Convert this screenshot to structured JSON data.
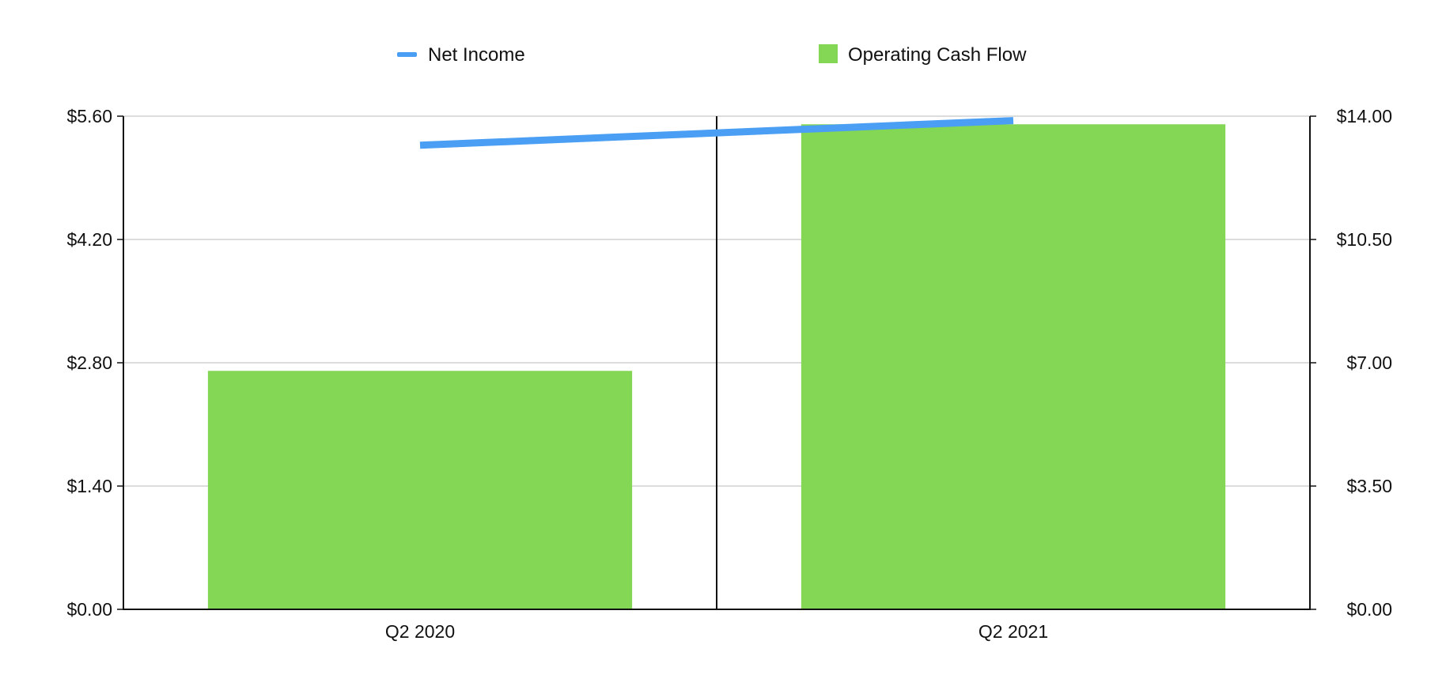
{
  "chart_data": {
    "type": "bar",
    "title": "",
    "xlabel": "",
    "ylabel": "",
    "categories": [
      "Q2 2020",
      "Q2 2021"
    ],
    "series": [
      {
        "name": "Net Income",
        "type": "line",
        "axis": "left",
        "color": "#4a9ff5",
        "values": [
          5.27,
          5.55
        ]
      },
      {
        "name": "Operating Cash Flow",
        "type": "bar",
        "axis": "right",
        "color": "#84d655",
        "values": [
          6.77,
          13.77
        ]
      }
    ],
    "y_left": {
      "ylim": [
        0,
        5.6
      ],
      "ticks": [
        0,
        1.4,
        2.8,
        4.2,
        5.6
      ],
      "tick_labels": [
        "$0.00",
        "$1.40",
        "$2.80",
        "$4.20",
        "$5.60"
      ]
    },
    "y_right": {
      "ylim": [
        0,
        14
      ],
      "ticks": [
        0,
        3.5,
        7,
        10.5,
        14
      ],
      "tick_labels": [
        "$0.00",
        "$3.50",
        "$7.00",
        "$10.50",
        "$14.00"
      ]
    },
    "grid": true,
    "legend": "top-center"
  }
}
